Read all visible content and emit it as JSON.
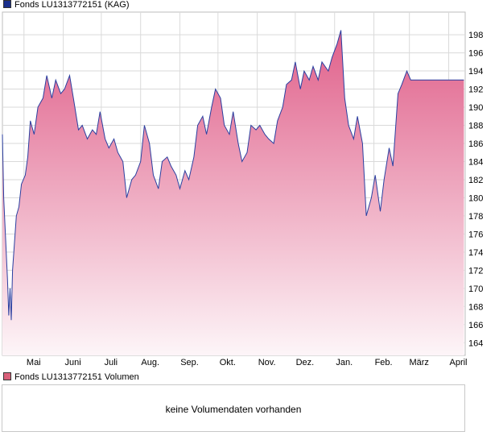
{
  "legend": {
    "price_label": "Fonds LU1313772151 (KAG)",
    "volume_label": "Fonds LU1313772151 Volumen",
    "price_color": "#1a2f8c",
    "volume_color": "#d9607a"
  },
  "volume": {
    "message": "keine Volumendaten vorhanden"
  },
  "colors": {
    "line": "#2a3fa0",
    "fill_top": "#e0608a",
    "fill_bottom": "#fdf5f8",
    "grid": "#dadada",
    "frame": "#bcbcbc"
  },
  "chart_data": {
    "type": "area",
    "title": "",
    "xlabel": "",
    "ylabel": "",
    "ylim": [
      162.6,
      200.5
    ],
    "yticks": [
      164,
      166,
      168,
      170,
      172,
      174,
      176,
      178,
      180,
      182,
      184,
      186,
      188,
      190,
      192,
      194,
      196,
      198
    ],
    "xticks": [
      "Mai",
      "Juni",
      "Juli",
      "Aug.",
      "Sep.",
      "Okt.",
      "Nov.",
      "Dez.",
      "Jan.",
      "Feb.",
      "März",
      "April"
    ],
    "grid": true,
    "y_axis_side": "right",
    "series": [
      {
        "name": "Fonds LU1313772151 (KAG)",
        "x": [
          "2016-04-14",
          "2016-04-15",
          "2016-04-18",
          "2016-04-19",
          "2016-04-20",
          "2016-04-21",
          "2016-04-22",
          "2016-04-25",
          "2016-04-27",
          "2016-04-29",
          "2016-05-02",
          "2016-05-04",
          "2016-05-06",
          "2016-05-09",
          "2016-05-12",
          "2016-05-16",
          "2016-05-19",
          "2016-05-23",
          "2016-05-26",
          "2016-05-30",
          "2016-06-02",
          "2016-06-06",
          "2016-06-09",
          "2016-06-13",
          "2016-06-16",
          "2016-06-20",
          "2016-06-24",
          "2016-06-27",
          "2016-06-30",
          "2016-07-04",
          "2016-07-07",
          "2016-07-11",
          "2016-07-14",
          "2016-07-18",
          "2016-07-21",
          "2016-07-25",
          "2016-07-28",
          "2016-08-01",
          "2016-08-04",
          "2016-08-08",
          "2016-08-11",
          "2016-08-15",
          "2016-08-18",
          "2016-08-22",
          "2016-08-25",
          "2016-08-29",
          "2016-09-01",
          "2016-09-05",
          "2016-09-08",
          "2016-09-12",
          "2016-09-15",
          "2016-09-19",
          "2016-09-22",
          "2016-09-26",
          "2016-09-29",
          "2016-10-03",
          "2016-10-06",
          "2016-10-10",
          "2016-10-13",
          "2016-10-17",
          "2016-10-20",
          "2016-10-24",
          "2016-10-27",
          "2016-10-31",
          "2016-11-03",
          "2016-11-07",
          "2016-11-10",
          "2016-11-14",
          "2016-11-17",
          "2016-11-21",
          "2016-11-24",
          "2016-11-28",
          "2016-12-01",
          "2016-12-05",
          "2016-12-08",
          "2016-12-12",
          "2016-12-15",
          "2016-12-19",
          "2016-12-22",
          "2016-12-27",
          "2016-12-30",
          "2017-01-03",
          "2017-01-06",
          "2017-01-09",
          "2017-01-12",
          "2017-01-16",
          "2017-01-19",
          "2017-01-23",
          "2017-01-26",
          "2017-01-30",
          "2017-02-02",
          "2017-02-06",
          "2017-02-09",
          "2017-02-13",
          "2017-02-16",
          "2017-02-20",
          "2017-02-23",
          "2017-02-27",
          "2017-03-02",
          "2017-03-06",
          "2017-03-09",
          "2017-03-13",
          "2017-03-16",
          "2017-03-20",
          "2017-03-23",
          "2017-03-27",
          "2017-03-30",
          "2017-04-03",
          "2017-04-06",
          "2017-04-10",
          "2017-04-13"
        ],
        "values": [
          187.0,
          180.0,
          171.0,
          167.0,
          170.0,
          166.5,
          172.0,
          178.0,
          179.0,
          181.5,
          182.5,
          184.5,
          188.5,
          187.0,
          190.0,
          191.0,
          193.5,
          191.0,
          193.0,
          191.5,
          192.0,
          193.5,
          191.0,
          187.5,
          188.0,
          186.5,
          187.5,
          187.0,
          189.5,
          186.5,
          185.5,
          186.5,
          185.0,
          184.0,
          180.0,
          182.0,
          182.5,
          184.0,
          188.0,
          186.0,
          182.5,
          181.0,
          184.0,
          184.5,
          183.5,
          182.5,
          181.0,
          183.0,
          182.0,
          184.5,
          188.0,
          189.0,
          187.0,
          190.0,
          192.0,
          191.0,
          188.0,
          187.0,
          189.5,
          186.0,
          184.0,
          185.0,
          188.0,
          187.5,
          188.0,
          187.0,
          186.5,
          186.0,
          188.5,
          190.0,
          192.5,
          193.0,
          195.0,
          192.0,
          194.0,
          193.0,
          194.5,
          193.0,
          195.0,
          194.0,
          195.5,
          197.0,
          198.5,
          191.0,
          188.0,
          186.5,
          189.0,
          186.0,
          178.0,
          180.0,
          182.5,
          178.5,
          182.0,
          185.5,
          183.5,
          191.5,
          192.5,
          194.0,
          193.0,
          193.0,
          193.0,
          193.0,
          193.0,
          193.0,
          193.0,
          193.0,
          193.0,
          193.0,
          193.0,
          193.0,
          193.0
        ]
      }
    ]
  }
}
